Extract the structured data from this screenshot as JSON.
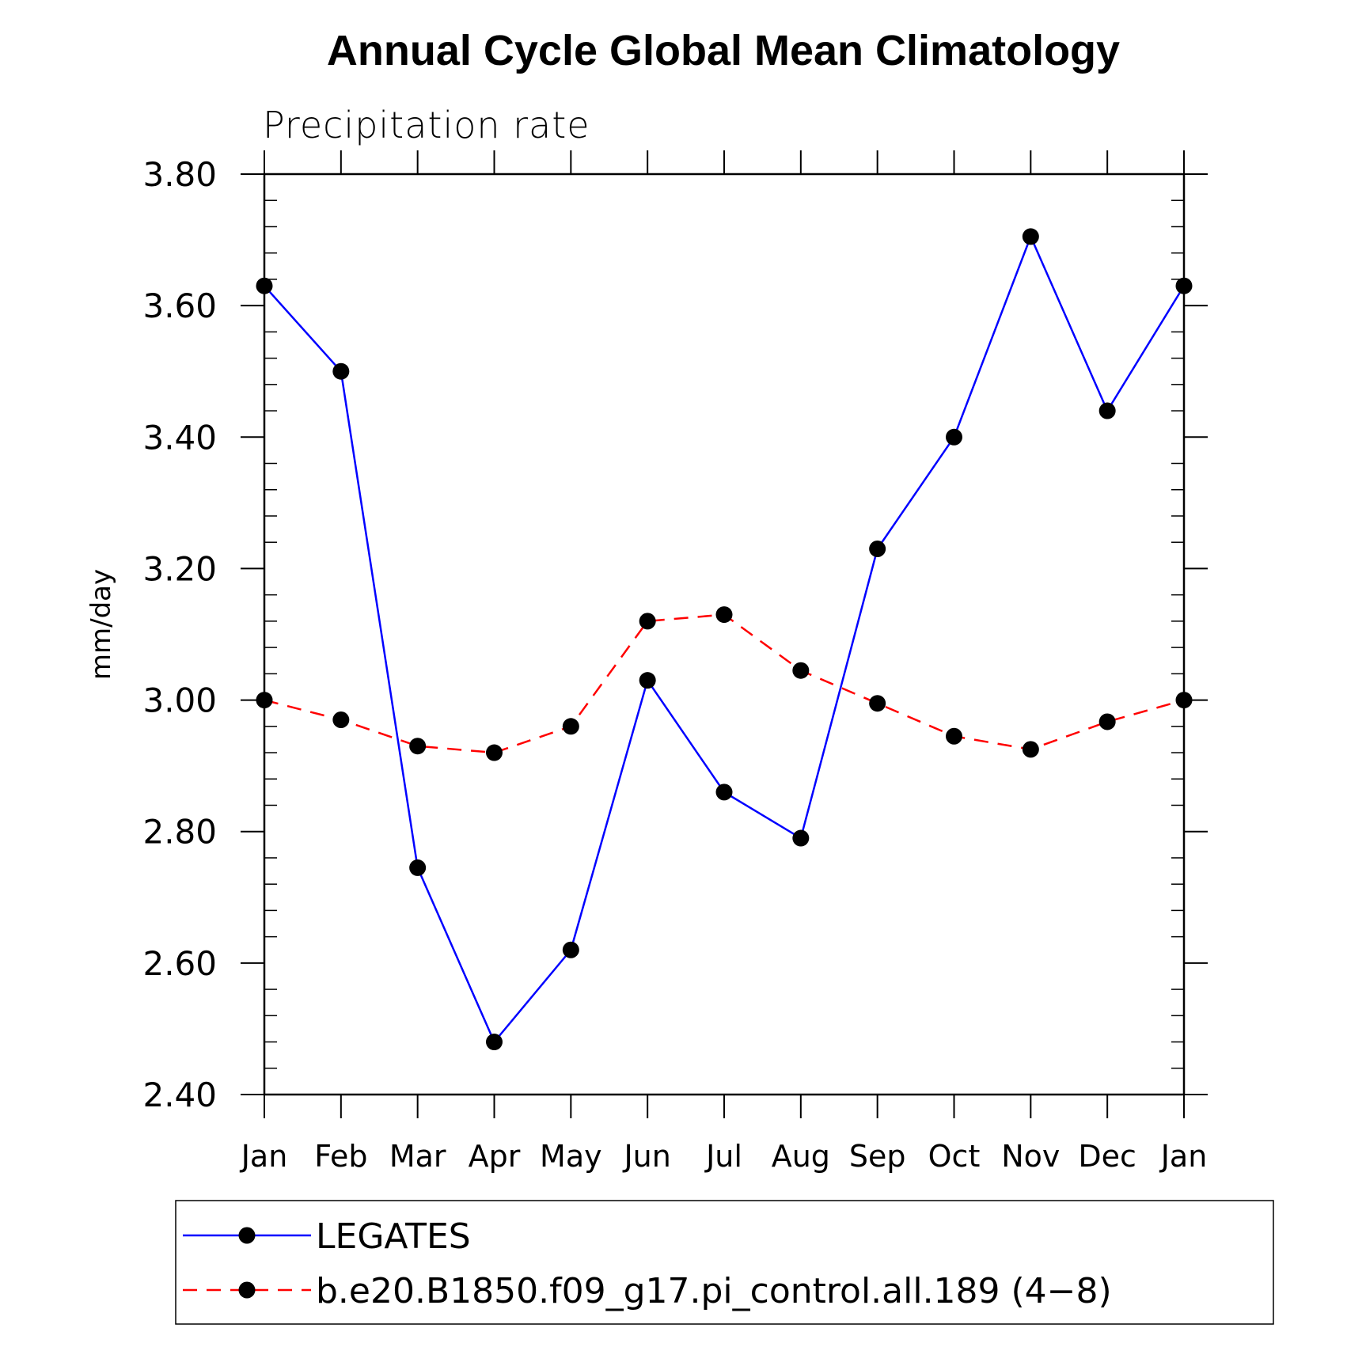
{
  "chart_data": {
    "type": "line",
    "title": "Annual Cycle Global Mean Climatology",
    "subtitle": "Precipitation rate",
    "xlabel": "",
    "ylabel": "mm/day",
    "categories": [
      "Jan",
      "Feb",
      "Mar",
      "Apr",
      "May",
      "Jun",
      "Jul",
      "Aug",
      "Sep",
      "Oct",
      "Nov",
      "Dec",
      "Jan"
    ],
    "ylim": [
      2.4,
      3.8
    ],
    "yticks": [
      "2.40",
      "2.60",
      "2.80",
      "3.00",
      "3.20",
      "3.40",
      "3.60",
      "3.80"
    ],
    "legend_position": "bottom",
    "series": [
      {
        "name": "LEGATES",
        "color": "#0000ff",
        "dash": "solid",
        "marker": "filled-circle",
        "values": [
          3.63,
          3.5,
          2.745,
          2.48,
          2.62,
          3.03,
          2.86,
          2.79,
          3.23,
          3.4,
          3.705,
          3.44,
          3.63
        ]
      },
      {
        "name": "b.e20.B1850.f09_g17.pi_control.all.189 (4−8)",
        "color": "#ff0000",
        "dash": "dashed",
        "marker": "filled-circle",
        "values": [
          3.0,
          2.97,
          2.93,
          2.92,
          2.96,
          3.12,
          3.13,
          3.045,
          2.995,
          2.945,
          2.925,
          2.967,
          3.0
        ]
      }
    ]
  }
}
